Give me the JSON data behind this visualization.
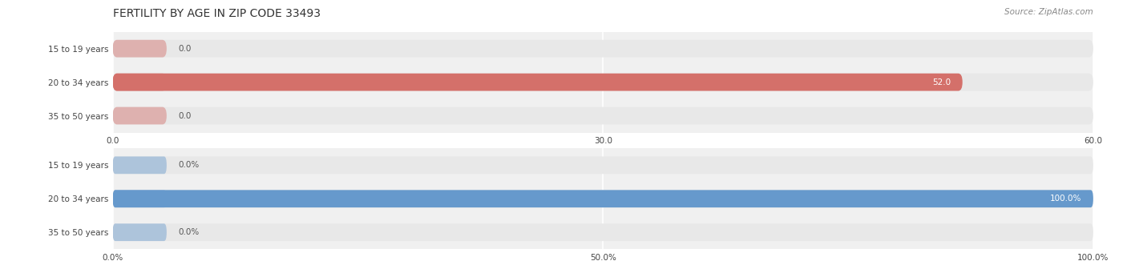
{
  "title": "FERTILITY BY AGE IN ZIP CODE 33493",
  "source": "Source: ZipAtlas.com",
  "top_chart": {
    "categories": [
      "15 to 19 years",
      "20 to 34 years",
      "35 to 50 years"
    ],
    "values": [
      0.0,
      52.0,
      0.0
    ],
    "xlim": [
      0,
      60
    ],
    "xticks": [
      0.0,
      30.0,
      60.0
    ],
    "xtick_labels": [
      "0.0",
      "30.0",
      "60.0"
    ],
    "bar_color": "#d4706a",
    "bar_bg_color": "#e8e8e8",
    "label_inside_color": "#ffffff",
    "label_outside_color": "#555555"
  },
  "bottom_chart": {
    "categories": [
      "15 to 19 years",
      "20 to 34 years",
      "35 to 50 years"
    ],
    "values": [
      0.0,
      100.0,
      0.0
    ],
    "xlim": [
      0,
      100
    ],
    "xticks": [
      0.0,
      50.0,
      100.0
    ],
    "xtick_labels": [
      "0.0%",
      "50.0%",
      "100.0%"
    ],
    "bar_color": "#6699cc",
    "bar_bg_color": "#e8e8e8",
    "label_inside_color": "#ffffff",
    "label_outside_color": "#555555"
  },
  "bar_height": 0.52,
  "label_fontsize": 7.5,
  "tick_fontsize": 7.5,
  "category_fontsize": 7.5,
  "title_fontsize": 10,
  "source_fontsize": 7.5,
  "bg_color": "#ffffff"
}
